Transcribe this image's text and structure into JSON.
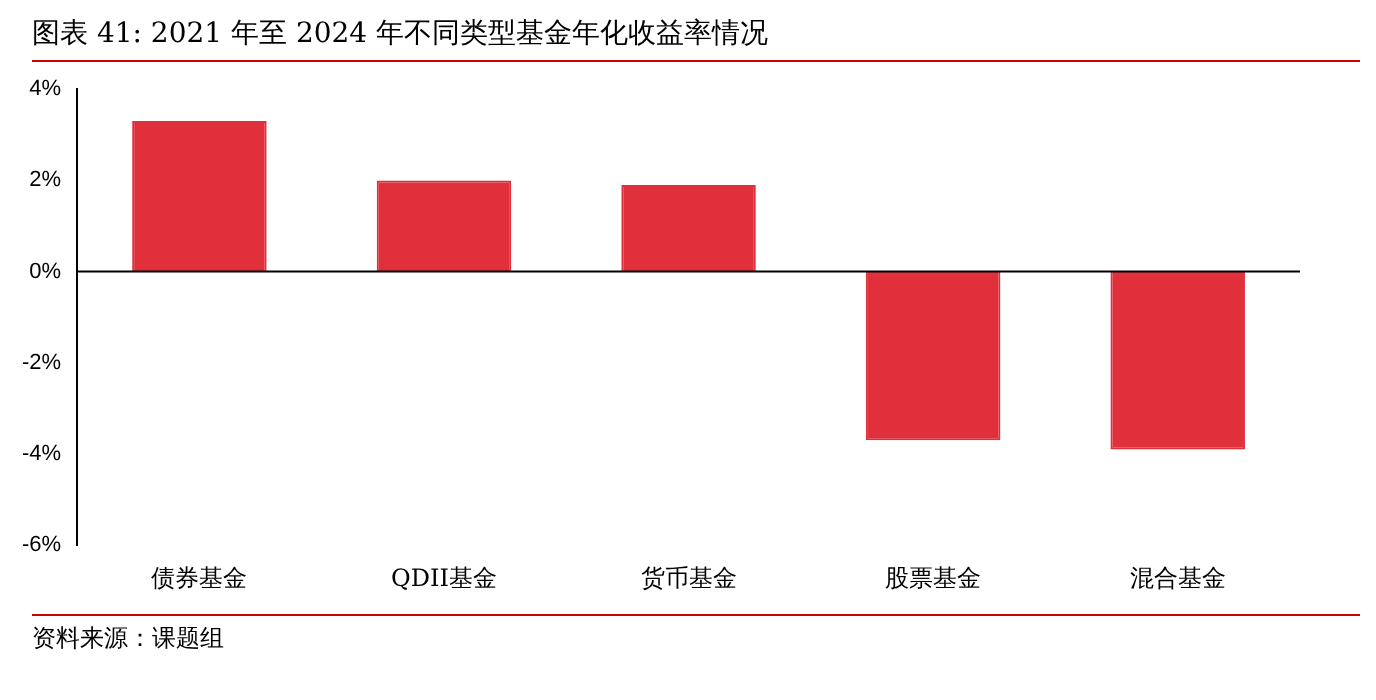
{
  "chart_data": {
    "type": "bar",
    "title": "图表 41: 2021 年至 2024 年不同类型基金年化收益率情况",
    "categories": [
      "债券基金",
      "QDII基金",
      "货币基金",
      "股票基金",
      "混合基金"
    ],
    "values": [
      3.3,
      2.0,
      1.9,
      -3.7,
      -3.9
    ],
    "color": "#e0303c",
    "ylim": [
      -6,
      4
    ],
    "yticks": [
      {
        "value": -6,
        "label": "-6%"
      },
      {
        "value": -4,
        "label": "-4%"
      },
      {
        "value": -2,
        "label": "-2%"
      },
      {
        "value": 0,
        "label": "0%"
      },
      {
        "value": 2,
        "label": "2%"
      },
      {
        "value": 4,
        "label": "4%"
      }
    ],
    "grid": false,
    "ref_lines": [
      {
        "axis": "y",
        "value": 0,
        "color": "#000000"
      }
    ],
    "legend": false,
    "annotations": [
      "资料来源：课题组"
    ]
  }
}
